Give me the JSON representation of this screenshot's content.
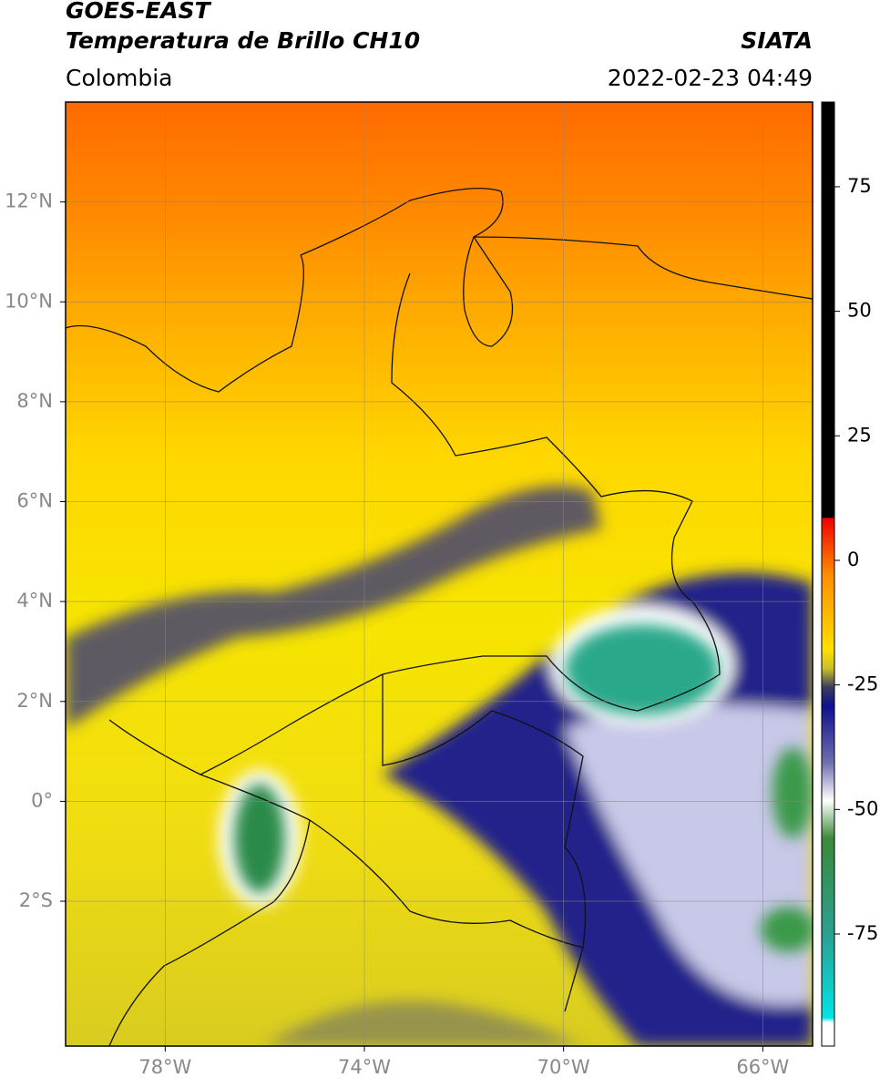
{
  "header": {
    "title": "GOES-EAST",
    "subtitle": "Temperatura de Brillo CH10",
    "region": "Colombia",
    "source": "SIATA",
    "timestamp": "2022-02-23 04:49"
  },
  "map": {
    "xlim": [
      -80,
      -65
    ],
    "ylim": [
      -4.9,
      14
    ],
    "xticks": [
      {
        "value": -78,
        "label": "78°W"
      },
      {
        "value": -74,
        "label": "74°W"
      },
      {
        "value": -70,
        "label": "70°W"
      },
      {
        "value": -66,
        "label": "66°W"
      }
    ],
    "yticks": [
      {
        "value": 12,
        "label": "12°N"
      },
      {
        "value": 10,
        "label": "10°N"
      },
      {
        "value": 8,
        "label": "8°N"
      },
      {
        "value": 6,
        "label": "6°N"
      },
      {
        "value": 4,
        "label": "4°N"
      },
      {
        "value": 2,
        "label": "2°N"
      },
      {
        "value": 0,
        "label": "0°"
      },
      {
        "value": -2,
        "label": "2°S"
      }
    ],
    "grid": true
  },
  "colorbar": {
    "range": [
      -97.5,
      92
    ],
    "ticks": [
      75,
      50,
      25,
      0,
      -25,
      -50,
      -75
    ]
  }
}
